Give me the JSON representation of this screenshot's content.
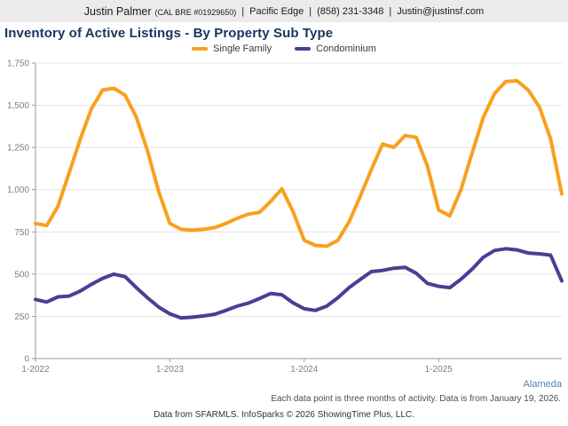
{
  "header": {
    "agent_name": "Justin Palmer",
    "license": "(CAL BRE #01929650)",
    "separator": "|",
    "company": "Pacific Edge",
    "phone": "(858) 231-3348",
    "email": "Justin@justinsf.com"
  },
  "title": "Inventory of Active Listings - By Property Sub Type",
  "legend": [
    {
      "label": "Single Family",
      "color": "#F8A01E"
    },
    {
      "label": "Condominium",
      "color": "#4B3E93"
    }
  ],
  "region_link": "Alameda",
  "footnotes": {
    "activity": "Each data point is three months of activity. Data is from January 19, 2026.",
    "source": "Data from SFARMLS. InfoSparks © 2026 ShowingTime Plus, LLC."
  },
  "colors": {
    "title_navy": "#17365d",
    "grid": "#e3e3e3",
    "axis": "#999999",
    "tick_label": "#7f7f7f",
    "region_blue": "#5580ad",
    "header_bg": "#ebebeb"
  },
  "chart_data": {
    "type": "line",
    "title": "Inventory of Active Listings - By Property Sub Type",
    "ylabel": "",
    "xlabel": "",
    "ylim": [
      0,
      1750
    ],
    "grid": true,
    "legend_position": "top",
    "y_ticks": [
      {
        "value": 0,
        "label": "0"
      },
      {
        "value": 250,
        "label": "250"
      },
      {
        "value": 500,
        "label": "500"
      },
      {
        "value": 750,
        "label": "750"
      },
      {
        "value": 1000,
        "label": "1,000"
      },
      {
        "value": 1250,
        "label": "1,250"
      },
      {
        "value": 1500,
        "label": "1,500"
      },
      {
        "value": 1750,
        "label": "1,750"
      }
    ],
    "x": [
      "1-2022",
      "2-2022",
      "3-2022",
      "4-2022",
      "5-2022",
      "6-2022",
      "7-2022",
      "8-2022",
      "9-2022",
      "10-2022",
      "11-2022",
      "12-2022",
      "1-2023",
      "2-2023",
      "3-2023",
      "4-2023",
      "5-2023",
      "6-2023",
      "7-2023",
      "8-2023",
      "9-2023",
      "10-2023",
      "11-2023",
      "12-2023",
      "1-2024",
      "2-2024",
      "3-2024",
      "4-2024",
      "5-2024",
      "6-2024",
      "7-2024",
      "8-2024",
      "9-2024",
      "10-2024",
      "11-2024",
      "12-2024",
      "1-2025",
      "2-2025",
      "3-2025",
      "4-2025",
      "5-2025",
      "6-2025",
      "7-2025",
      "8-2025",
      "9-2025",
      "10-2025",
      "11-2025",
      "12-2025"
    ],
    "x_tick_indices": [
      0,
      12,
      24,
      36
    ],
    "x_tick_labels": [
      "1-2022",
      "1-2023",
      "1-2024",
      "1-2025"
    ],
    "series": [
      {
        "name": "Single Family",
        "color": "#F8A01E",
        "values": [
          800,
          788,
          900,
          1100,
          1300,
          1480,
          1590,
          1600,
          1560,
          1430,
          1230,
          990,
          800,
          765,
          760,
          765,
          775,
          800,
          830,
          855,
          865,
          930,
          1005,
          870,
          700,
          670,
          665,
          700,
          810,
          960,
          1120,
          1270,
          1250,
          1320,
          1310,
          1140,
          880,
          845,
          1000,
          1220,
          1430,
          1570,
          1640,
          1645,
          1590,
          1490,
          1300,
          975
        ]
      },
      {
        "name": "Condominium",
        "color": "#4B3E93",
        "values": [
          350,
          335,
          365,
          370,
          400,
          440,
          475,
          500,
          485,
          420,
          360,
          305,
          265,
          240,
          245,
          252,
          262,
          285,
          310,
          328,
          355,
          385,
          378,
          330,
          295,
          285,
          310,
          360,
          420,
          468,
          515,
          522,
          535,
          540,
          505,
          445,
          428,
          420,
          470,
          530,
          600,
          640,
          650,
          643,
          625,
          620,
          612,
          460
        ]
      }
    ]
  }
}
